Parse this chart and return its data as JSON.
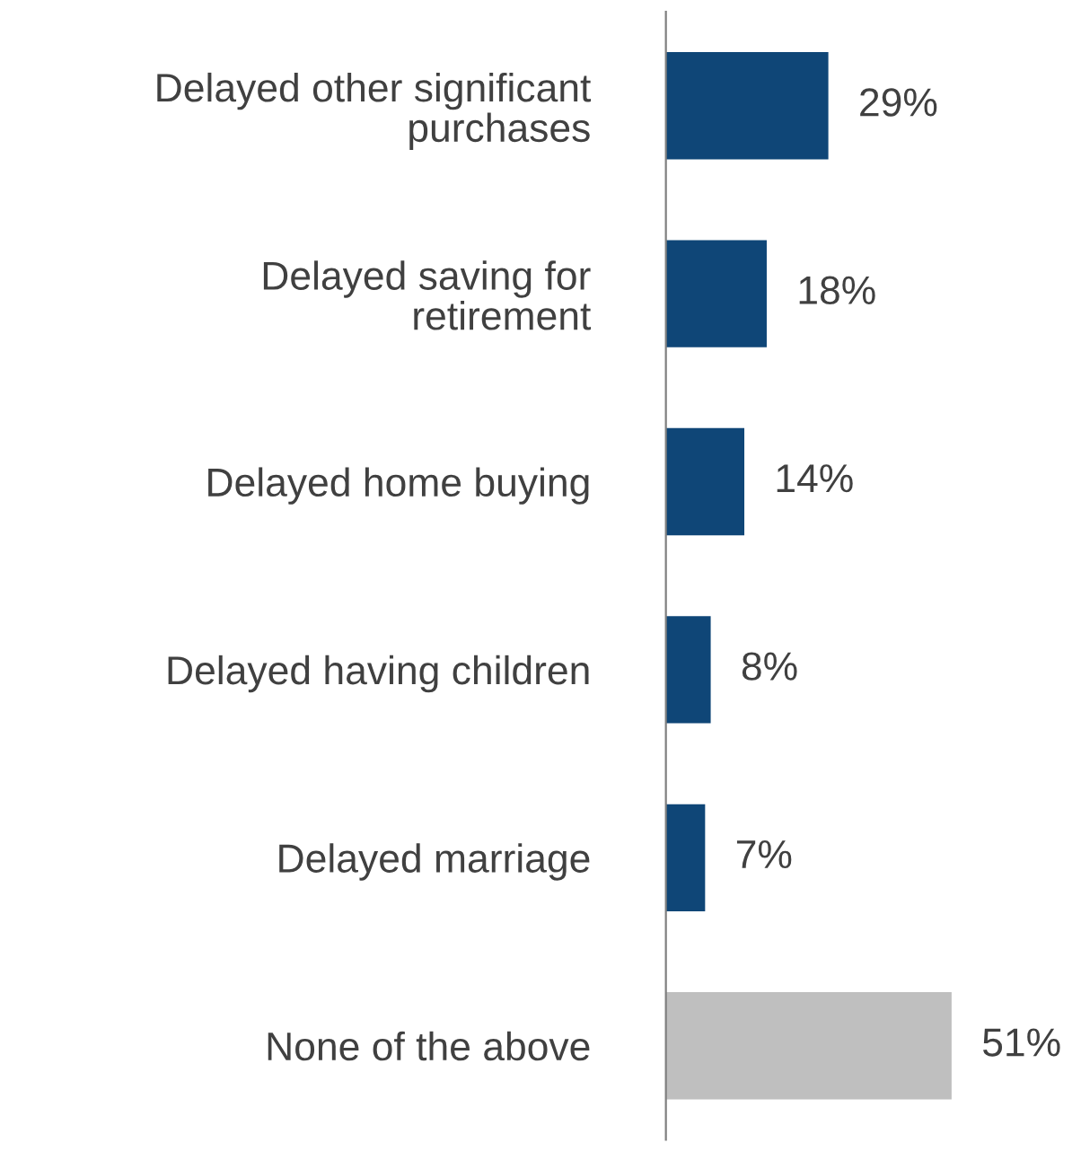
{
  "chart_data": {
    "type": "bar",
    "orientation": "horizontal",
    "categories": [
      "Delayed other significant\npurchases",
      "Delayed saving for\nretirement",
      "Delayed home buying",
      "Delayed having children",
      "Delayed marriage",
      "None of the above"
    ],
    "values": [
      29,
      18,
      14,
      8,
      7,
      51
    ],
    "colors": [
      "#0f4677",
      "#0f4677",
      "#0f4677",
      "#0f4677",
      "#0f4677",
      "#bfbfbf"
    ],
    "value_labels": [
      "29%",
      "18%",
      "14%",
      "8%",
      "7%",
      "51%"
    ],
    "grid": false,
    "legend": false
  }
}
